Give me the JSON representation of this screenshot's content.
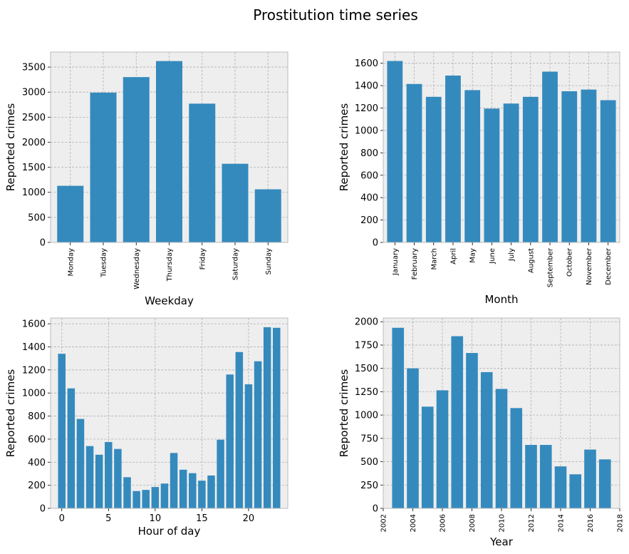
{
  "figure": {
    "title": "Prostitution time series"
  },
  "colors": {
    "bar": "#348abd",
    "axes_bg": "#eeeeee",
    "grid": "#b0b0b0"
  },
  "chart_data": [
    {
      "type": "bar",
      "xlabel": "Weekday",
      "ylabel": "Reported crimes",
      "categories": [
        "Monday",
        "Tuesday",
        "Wednesday",
        "Thursday",
        "Friday",
        "Saturday",
        "Sunday"
      ],
      "values": [
        1130,
        2990,
        3300,
        3620,
        2770,
        1570,
        1060
      ],
      "ylim": [
        0,
        3800
      ],
      "yticks": [
        0,
        500,
        1000,
        1500,
        2000,
        2500,
        3000,
        3500
      ],
      "grid": true
    },
    {
      "type": "bar",
      "xlabel": "Month",
      "ylabel": "Reported crimes",
      "categories": [
        "January",
        "February",
        "March",
        "April",
        "May",
        "June",
        "July",
        "August",
        "September",
        "October",
        "November",
        "December"
      ],
      "values": [
        1620,
        1415,
        1300,
        1490,
        1360,
        1195,
        1240,
        1300,
        1525,
        1350,
        1365,
        1270
      ],
      "ylim": [
        0,
        1700
      ],
      "yticks": [
        0,
        200,
        400,
        600,
        800,
        1000,
        1200,
        1400,
        1600
      ],
      "grid": true
    },
    {
      "type": "bar",
      "xlabel": "Hour of day",
      "ylabel": "Reported crimes",
      "x": [
        0,
        1,
        2,
        3,
        4,
        5,
        6,
        7,
        8,
        9,
        10,
        11,
        12,
        13,
        14,
        15,
        16,
        17,
        18,
        19,
        20,
        21,
        22,
        23
      ],
      "values": [
        1340,
        1040,
        775,
        540,
        465,
        575,
        515,
        270,
        150,
        160,
        185,
        215,
        480,
        335,
        305,
        240,
        285,
        595,
        1160,
        1355,
        1075,
        1275,
        1570,
        1565
      ],
      "xlim": [
        -1.2,
        24.2
      ],
      "ylim": [
        0,
        1650
      ],
      "xticks": [
        0,
        5,
        10,
        15,
        20
      ],
      "yticks": [
        0,
        200,
        400,
        600,
        800,
        1000,
        1200,
        1400,
        1600
      ],
      "grid": true
    },
    {
      "type": "bar",
      "xlabel": "Year",
      "ylabel": "Reported crimes",
      "x": [
        2003,
        2004,
        2005,
        2006,
        2007,
        2008,
        2009,
        2010,
        2011,
        2012,
        2013,
        2014,
        2015,
        2016,
        2017
      ],
      "values": [
        1935,
        1500,
        1090,
        1265,
        1845,
        1665,
        1460,
        1280,
        1075,
        680,
        680,
        450,
        365,
        630,
        525
      ],
      "xlim": [
        2002,
        2018
      ],
      "ylim": [
        0,
        2040
      ],
      "xticks": [
        2002,
        2004,
        2006,
        2008,
        2010,
        2012,
        2014,
        2016,
        2018
      ],
      "yticks": [
        0,
        250,
        500,
        750,
        1000,
        1250,
        1500,
        1750,
        2000
      ],
      "grid": true
    }
  ]
}
